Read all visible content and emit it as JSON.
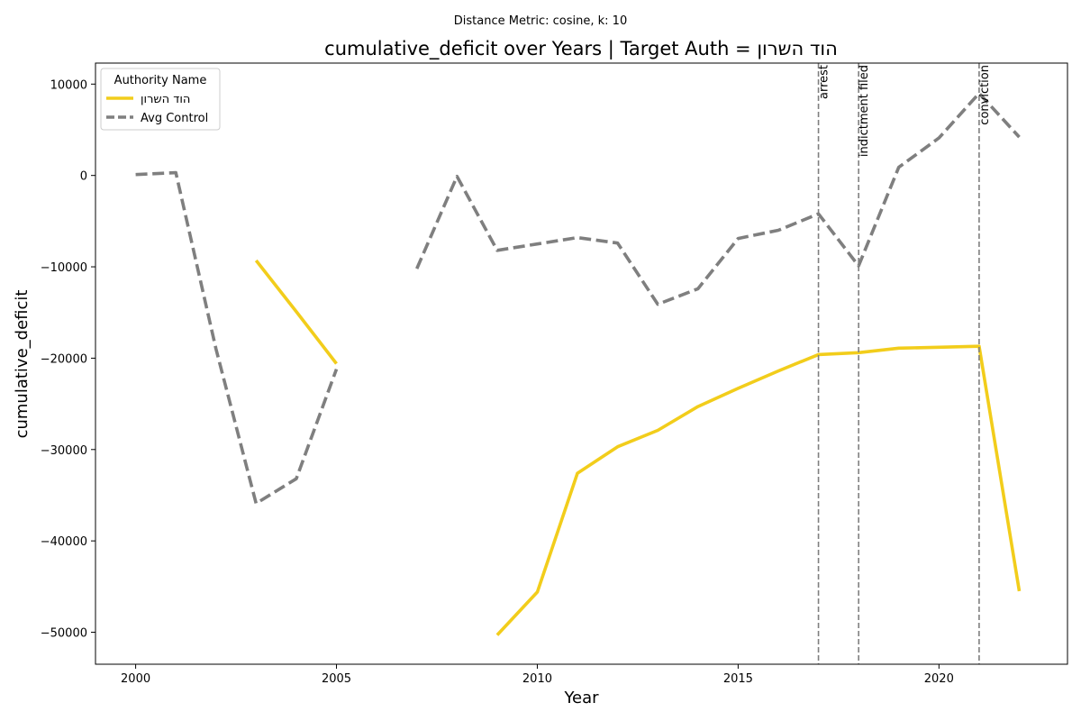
{
  "chart_data": {
    "type": "line",
    "suptitle": "Distance Metric: cosine, k: 10",
    "title": "cumulative_deficit over Years | Target Auth = הוד השרון",
    "xlabel": "Year",
    "ylabel": "cumulative_deficit",
    "xlim": [
      1999,
      2023.2
    ],
    "ylim": [
      -53500,
      12300
    ],
    "xticks": [
      2000,
      2005,
      2010,
      2015,
      2020
    ],
    "yticks": [
      -50000,
      -40000,
      -30000,
      -20000,
      -10000,
      0,
      10000
    ],
    "ytick_labels": [
      "−50000",
      "−40000",
      "−30000",
      "−20000",
      "−10000",
      "0",
      "10000"
    ],
    "grid": false,
    "legend": {
      "title": "Authority Name",
      "placement": "top-left"
    },
    "series": [
      {
        "name": "הוד השרון",
        "color": "#f2cd1b",
        "style": "solid",
        "segments": [
          [
            [
              2003,
              -9300
            ],
            [
              2004,
              -14900
            ],
            [
              2005,
              -20600
            ]
          ],
          [
            [
              2009,
              -50300
            ],
            [
              2010,
              -45600
            ],
            [
              2011,
              -32600
            ],
            [
              2012,
              -29700
            ],
            [
              2013,
              -27900
            ],
            [
              2014,
              -25300
            ],
            [
              2015,
              -23300
            ],
            [
              2016,
              -21400
            ],
            [
              2017,
              -19600
            ],
            [
              2018,
              -19400
            ],
            [
              2019,
              -18900
            ],
            [
              2020,
              -18800
            ],
            [
              2021,
              -18700
            ],
            [
              2022,
              -45500
            ]
          ]
        ]
      },
      {
        "name": "Avg Control",
        "color": "#7f7f7f",
        "style": "dashed",
        "segments": [
          [
            [
              2000,
              100
            ],
            [
              2001,
              300
            ],
            [
              2002,
              -19000
            ],
            [
              2003,
              -35900
            ],
            [
              2004,
              -33200
            ],
            [
              2005,
              -21200
            ]
          ],
          [
            [
              2007,
              -10200
            ],
            [
              2008,
              -100
            ],
            [
              2009,
              -8200
            ],
            [
              2010,
              -7500
            ],
            [
              2011,
              -6800
            ],
            [
              2012,
              -7400
            ],
            [
              2013,
              -14100
            ],
            [
              2014,
              -12400
            ],
            [
              2015,
              -6900
            ],
            [
              2016,
              -6000
            ],
            [
              2017,
              -4200
            ],
            [
              2018,
              -9900
            ],
            [
              2019,
              900
            ],
            [
              2020,
              4100
            ],
            [
              2021,
              9000
            ],
            [
              2022,
              4200
            ]
          ]
        ]
      }
    ],
    "events": [
      {
        "x": 2017,
        "label": "arrest"
      },
      {
        "x": 2018,
        "label": "indictment filed"
      },
      {
        "x": 2021,
        "label": "conviction"
      }
    ]
  }
}
